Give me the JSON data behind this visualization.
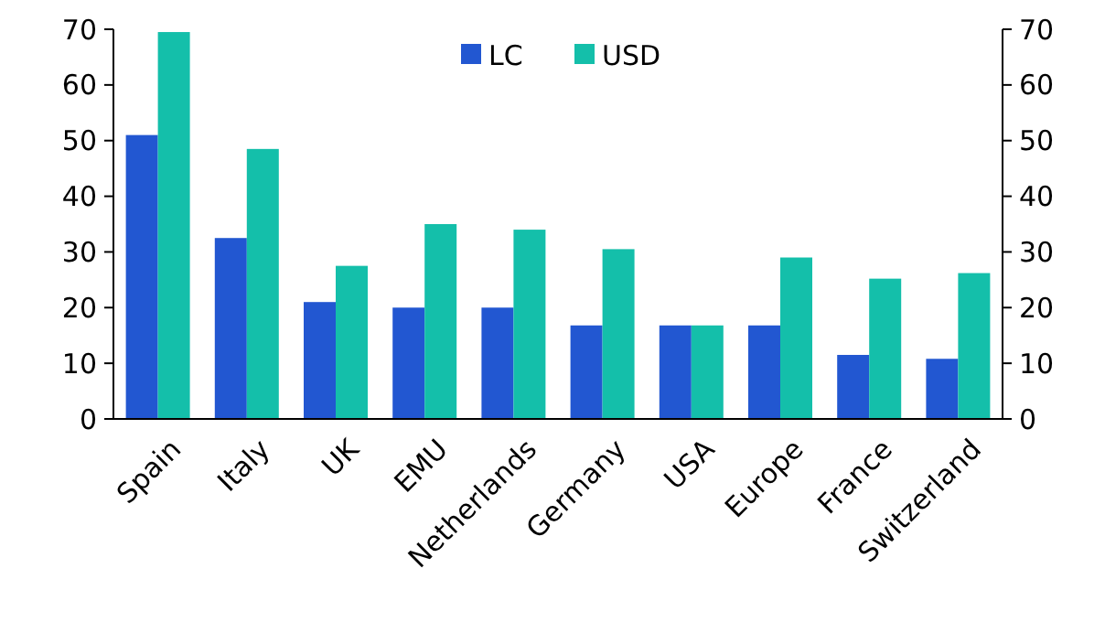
{
  "chart_data": {
    "type": "bar",
    "categories": [
      "Spain",
      "Italy",
      "UK",
      "EMU",
      "Netherlands",
      "Germany",
      "USA",
      "Europe",
      "France",
      "Switzerland"
    ],
    "series": [
      {
        "name": "LC",
        "color": "#2257d1",
        "values": [
          51,
          32.5,
          21,
          20,
          20,
          16.8,
          16.8,
          16.8,
          11.5,
          10.8
        ]
      },
      {
        "name": "USD",
        "color": "#14bfaa",
        "values": [
          69.5,
          48.5,
          27.5,
          35,
          34,
          30.5,
          16.8,
          29,
          25.2,
          26.2
        ]
      }
    ],
    "ylim": [
      0,
      70
    ],
    "yticks": [
      0,
      10,
      20,
      30,
      40,
      50,
      60,
      70
    ],
    "y2lim": [
      0,
      70
    ],
    "y2ticks": [
      0,
      10,
      20,
      30,
      40,
      50,
      60,
      70
    ],
    "legend": "top",
    "grid": false
  }
}
